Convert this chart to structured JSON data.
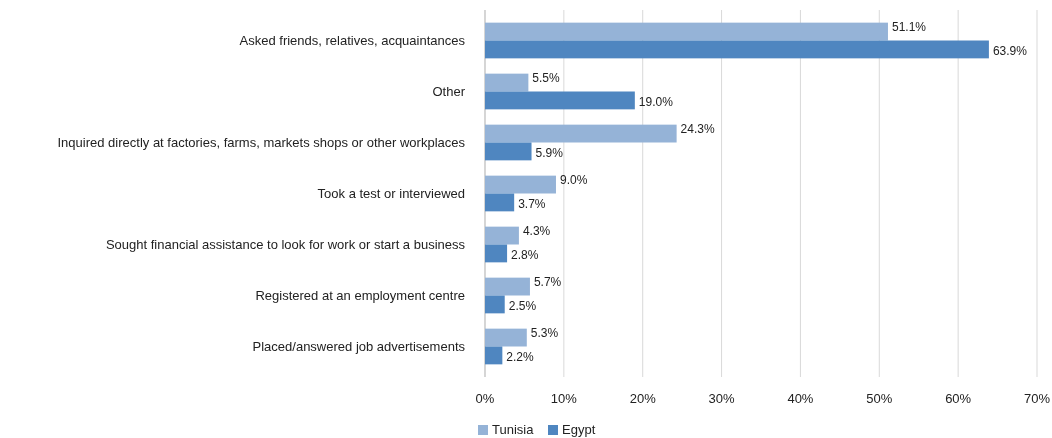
{
  "chart_data": {
    "type": "bar",
    "orientation": "horizontal",
    "categories": [
      "Asked friends, relatives, acquaintances",
      "Other",
      "Inquired directly at factories, farms, markets shops or other workplaces",
      "Took a test or interviewed",
      "Sought financial assistance to look for work or start a business",
      "Registered at an employment centre",
      "Placed/answered job advertisements"
    ],
    "series": [
      {
        "name": "Tunisia",
        "color": "#95b3d7",
        "values": [
          51.1,
          5.5,
          24.3,
          9.0,
          4.3,
          5.7,
          5.3
        ],
        "value_labels": [
          "51.1%",
          "5.5%",
          "24.3%",
          "9.0%",
          "4.3%",
          "5.7%",
          "5.3%"
        ]
      },
      {
        "name": "Egypt",
        "color": "#4f86c0",
        "values": [
          63.9,
          19.0,
          5.9,
          3.7,
          2.8,
          2.5,
          2.2
        ],
        "value_labels": [
          "63.9%",
          "19.0%",
          "5.9%",
          "3.7%",
          "2.8%",
          "2.5%",
          "2.2%"
        ]
      }
    ],
    "xlim": [
      0,
      70
    ],
    "xticks": [
      {
        "value": 0,
        "label": "0%"
      },
      {
        "value": 10,
        "label": "10%"
      },
      {
        "value": 20,
        "label": "20%"
      },
      {
        "value": 30,
        "label": "30%"
      },
      {
        "value": 40,
        "label": "40%"
      },
      {
        "value": 50,
        "label": "50%"
      },
      {
        "value": 60,
        "label": "60%"
      },
      {
        "value": 70,
        "label": "70%"
      }
    ],
    "grid": "x",
    "legend": "bottom"
  }
}
